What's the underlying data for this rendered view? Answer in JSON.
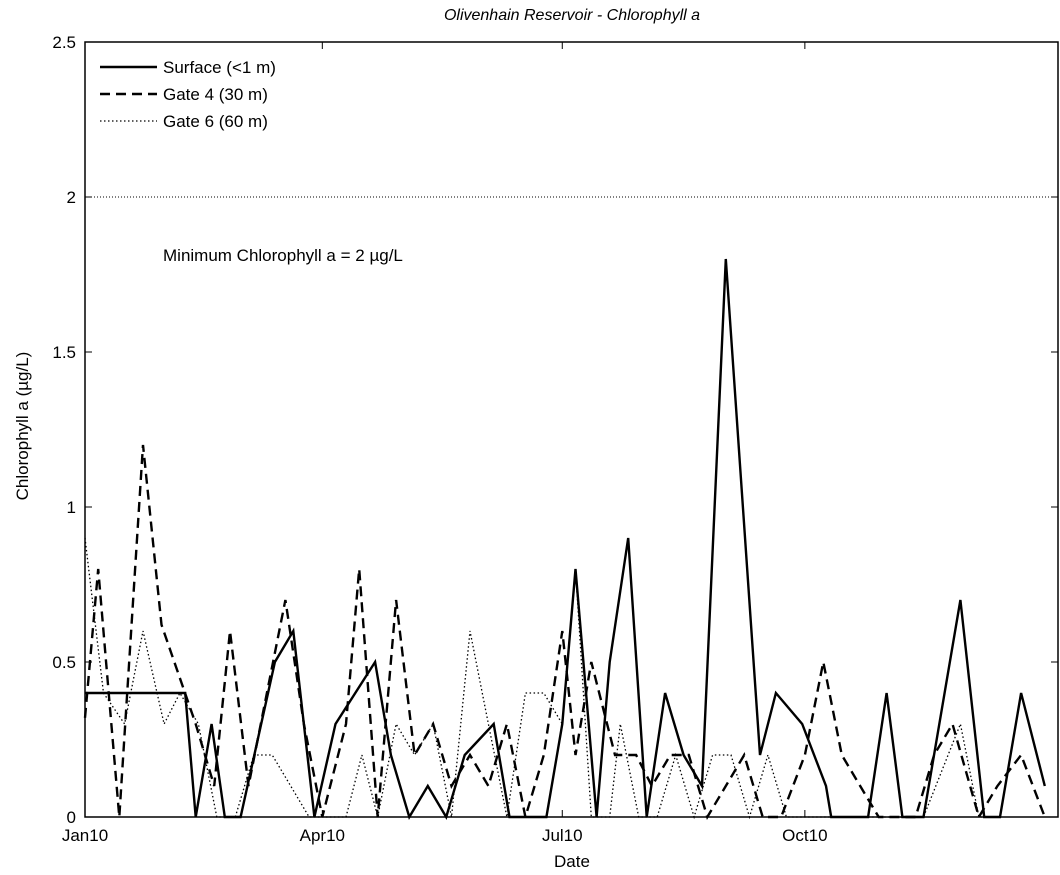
{
  "chart_data": {
    "type": "line",
    "title": "Olivenhain Reservoir - Chlorophyll a",
    "xlabel": "Date",
    "ylabel": "Chlorophyll a (µg/L)",
    "x_axis_type": "date",
    "xlim": [
      "2010-01-01",
      "2011-01-05"
    ],
    "ylim": [
      0,
      2.5
    ],
    "x_ticks": [
      {
        "date": "2010-01-01",
        "label": "Jan10"
      },
      {
        "date": "2010-04-01",
        "label": "Apr10"
      },
      {
        "date": "2010-07-01",
        "label": "Jul10"
      },
      {
        "date": "2010-10-01",
        "label": "Oct10"
      }
    ],
    "y_ticks": [
      0,
      0.5,
      1,
      1.5,
      2,
      2.5
    ],
    "y_tick_labels": [
      "0",
      "0.5",
      "1",
      "1.5",
      "2",
      "2.5"
    ],
    "grid": false,
    "legend_position": "top-left",
    "reference_line": {
      "y": 2,
      "style": "dotted",
      "label": "Minimum Chlorophyll a = 2 µg/L"
    },
    "series": [
      {
        "name": "Surface (<1 m)",
        "style": "solid",
        "points": [
          [
            "2010-01-01",
            0.4
          ],
          [
            "2010-02-08",
            0.4
          ],
          [
            "2010-02-12",
            0.0
          ],
          [
            "2010-02-18",
            0.3
          ],
          [
            "2010-02-23",
            0.0
          ],
          [
            "2010-03-01",
            0.0
          ],
          [
            "2010-03-14",
            0.5
          ],
          [
            "2010-03-21",
            0.6
          ],
          [
            "2010-03-29",
            0.0
          ],
          [
            "2010-04-06",
            0.3
          ],
          [
            "2010-04-21",
            0.5
          ],
          [
            "2010-04-27",
            0.2
          ],
          [
            "2010-05-04",
            0.0
          ],
          [
            "2010-05-11",
            0.1
          ],
          [
            "2010-05-18",
            0.0
          ],
          [
            "2010-05-25",
            0.2
          ],
          [
            "2010-06-05",
            0.3
          ],
          [
            "2010-06-11",
            0.0
          ],
          [
            "2010-06-25",
            0.0
          ],
          [
            "2010-07-01",
            0.3
          ],
          [
            "2010-07-06",
            0.8
          ],
          [
            "2010-07-14",
            0.0
          ],
          [
            "2010-07-19",
            0.5
          ],
          [
            "2010-07-26",
            0.9
          ],
          [
            "2010-08-02",
            0.0
          ],
          [
            "2010-08-09",
            0.4
          ],
          [
            "2010-08-16",
            0.2
          ],
          [
            "2010-08-23",
            0.1
          ],
          [
            "2010-09-01",
            1.8
          ],
          [
            "2010-09-14",
            0.2
          ],
          [
            "2010-09-20",
            0.4
          ],
          [
            "2010-09-30",
            0.3
          ],
          [
            "2010-10-09",
            0.1
          ],
          [
            "2010-10-11",
            0.0
          ],
          [
            "2010-10-25",
            0.0
          ],
          [
            "2010-11-01",
            0.4
          ],
          [
            "2010-11-07",
            0.0
          ],
          [
            "2010-11-15",
            0.0
          ],
          [
            "2010-11-29",
            0.7
          ],
          [
            "2010-12-08",
            0.0
          ],
          [
            "2010-12-14",
            0.0
          ],
          [
            "2010-12-22",
            0.4
          ],
          [
            "2010-12-31",
            0.1
          ]
        ]
      },
      {
        "name": "Gate 4 (30 m)",
        "style": "dashed",
        "points": [
          [
            "2010-01-01",
            0.32
          ],
          [
            "2010-01-06",
            0.8
          ],
          [
            "2010-01-10",
            0.4
          ],
          [
            "2010-01-14",
            0.0
          ],
          [
            "2010-01-23",
            1.2
          ],
          [
            "2010-01-30",
            0.62
          ],
          [
            "2010-02-12",
            0.3
          ],
          [
            "2010-02-19",
            0.1
          ],
          [
            "2010-02-25",
            0.6
          ],
          [
            "2010-03-04",
            0.1
          ],
          [
            "2010-03-11",
            0.4
          ],
          [
            "2010-03-18",
            0.7
          ],
          [
            "2010-03-25",
            0.3
          ],
          [
            "2010-04-01",
            0.0
          ],
          [
            "2010-04-10",
            0.3
          ],
          [
            "2010-04-15",
            0.8
          ],
          [
            "2010-04-22",
            0.0
          ],
          [
            "2010-04-29",
            0.7
          ],
          [
            "2010-05-06",
            0.2
          ],
          [
            "2010-05-13",
            0.3
          ],
          [
            "2010-05-20",
            0.1
          ],
          [
            "2010-05-27",
            0.2
          ],
          [
            "2010-06-03",
            0.1
          ],
          [
            "2010-06-10",
            0.3
          ],
          [
            "2010-06-17",
            0.0
          ],
          [
            "2010-06-24",
            0.2
          ],
          [
            "2010-07-01",
            0.6
          ],
          [
            "2010-07-06",
            0.2
          ],
          [
            "2010-07-12",
            0.5
          ],
          [
            "2010-07-21",
            0.2
          ],
          [
            "2010-07-29",
            0.2
          ],
          [
            "2010-08-04",
            0.1
          ],
          [
            "2010-08-11",
            0.2
          ],
          [
            "2010-08-18",
            0.2
          ],
          [
            "2010-08-25",
            0.0
          ],
          [
            "2010-09-01",
            0.1
          ],
          [
            "2010-09-08",
            0.2
          ],
          [
            "2010-09-15",
            0.0
          ],
          [
            "2010-09-22",
            0.0
          ],
          [
            "2010-10-01",
            0.2
          ],
          [
            "2010-10-08",
            0.5
          ],
          [
            "2010-10-15",
            0.2
          ],
          [
            "2010-10-22",
            0.1
          ],
          [
            "2010-10-29",
            0.0
          ],
          [
            "2010-11-05",
            0.0
          ],
          [
            "2010-11-12",
            0.0
          ],
          [
            "2010-11-19",
            0.2
          ],
          [
            "2010-11-26",
            0.3
          ],
          [
            "2010-12-06",
            0.0
          ],
          [
            "2010-12-13",
            0.1
          ],
          [
            "2010-12-22",
            0.2
          ],
          [
            "2010-12-31",
            0.0
          ]
        ]
      },
      {
        "name": "Gate 6 (60 m)",
        "style": "dotted",
        "points": [
          [
            "2010-01-01",
            0.9
          ],
          [
            "2010-01-08",
            0.4
          ],
          [
            "2010-01-16",
            0.3
          ],
          [
            "2010-01-23",
            0.6
          ],
          [
            "2010-01-31",
            0.3
          ],
          [
            "2010-02-06",
            0.4
          ],
          [
            "2010-02-13",
            0.3
          ],
          [
            "2010-02-20",
            0.0
          ],
          [
            "2010-02-27",
            0.0
          ],
          [
            "2010-03-06",
            0.2
          ],
          [
            "2010-03-13",
            0.2
          ],
          [
            "2010-03-20",
            0.1
          ],
          [
            "2010-03-27",
            0.0
          ],
          [
            "2010-04-03",
            0.0
          ],
          [
            "2010-04-10",
            0.0
          ],
          [
            "2010-04-16",
            0.2
          ],
          [
            "2010-04-22",
            0.0
          ],
          [
            "2010-04-29",
            0.3
          ],
          [
            "2010-05-06",
            0.2
          ],
          [
            "2010-05-13",
            0.3
          ],
          [
            "2010-05-20",
            0.0
          ],
          [
            "2010-05-27",
            0.6
          ],
          [
            "2010-06-03",
            0.3
          ],
          [
            "2010-06-10",
            0.0
          ],
          [
            "2010-06-17",
            0.4
          ],
          [
            "2010-06-24",
            0.4
          ],
          [
            "2010-07-01",
            0.3
          ],
          [
            "2010-07-06",
            0.8
          ],
          [
            "2010-07-12",
            0.0
          ],
          [
            "2010-07-19",
            0.0
          ],
          [
            "2010-07-23",
            0.3
          ],
          [
            "2010-07-30",
            0.0
          ],
          [
            "2010-08-06",
            0.0
          ],
          [
            "2010-08-13",
            0.2
          ],
          [
            "2010-08-20",
            0.0
          ],
          [
            "2010-08-27",
            0.2
          ],
          [
            "2010-09-03",
            0.2
          ],
          [
            "2010-09-10",
            0.0
          ],
          [
            "2010-09-17",
            0.2
          ],
          [
            "2010-09-24",
            0.0
          ],
          [
            "2010-10-01",
            0.0
          ],
          [
            "2010-10-15",
            0.0
          ],
          [
            "2010-11-01",
            0.0
          ],
          [
            "2010-11-15",
            0.0
          ],
          [
            "2010-11-29",
            0.3
          ],
          [
            "2010-12-06",
            0.0
          ],
          [
            "2010-12-13",
            0.0
          ]
        ]
      }
    ]
  }
}
